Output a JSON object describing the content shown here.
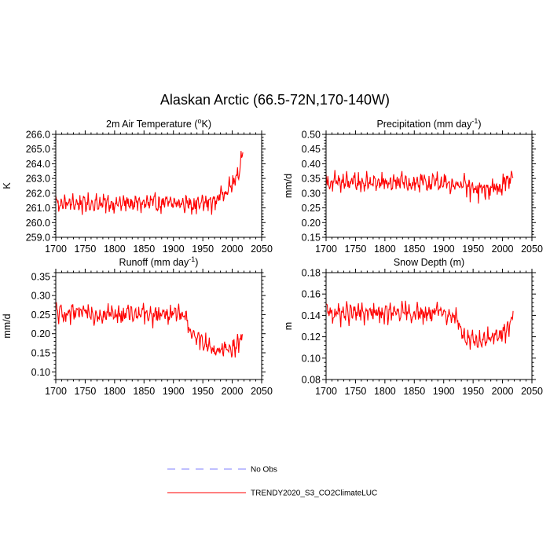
{
  "figure": {
    "title": "Alaskan Arctic (66.5-72N,170-140W)"
  },
  "legend": {
    "items": [
      {
        "label": "No Obs",
        "color": "#7f7fff",
        "style": "dashed"
      },
      {
        "label": "TRENDY2020_S3_CO2ClimateLUC",
        "color": "#ff0000",
        "style": "solid"
      }
    ]
  },
  "chart_data": [
    {
      "id": "temp",
      "type": "line",
      "title": "2m Air Temperature (",
      "title_sup": "o",
      "title_end": "K)",
      "ylabel": "K",
      "xlim": [
        1700,
        2050
      ],
      "ylim": [
        259.0,
        266.0
      ],
      "xticks": [
        1700,
        1750,
        1800,
        1850,
        1900,
        1950,
        2000,
        2050
      ],
      "yticks": [
        "259.0",
        "260.0",
        "261.0",
        "262.0",
        "263.0",
        "264.0",
        "265.0",
        "266.0"
      ],
      "color": "#ff0000",
      "series_name": "TRENDY2020_S3_CO2ClimateLUC",
      "base": 261.3,
      "amp": 0.9,
      "x": [
        1700,
        1750,
        1800,
        1850,
        1900,
        1950,
        1970,
        1980,
        1990,
        2000,
        2010,
        2015,
        2018
      ],
      "y": [
        261.3,
        261.3,
        261.3,
        261.3,
        261.3,
        261.3,
        261.4,
        261.9,
        262.2,
        262.6,
        263.2,
        264.4,
        264.8
      ],
      "amps": [
        0.9,
        0.9,
        0.9,
        0.9,
        0.9,
        1.0,
        0.9,
        0.7,
        0.8,
        0.8,
        0.8,
        0.8,
        0.6
      ]
    },
    {
      "id": "precip",
      "type": "line",
      "title": "Precipitation (mm day",
      "title_sup": "-1",
      "title_end": ")",
      "ylabel": "mm/d",
      "xlim": [
        1700,
        2050
      ],
      "ylim": [
        0.15,
        0.5
      ],
      "xticks": [
        1700,
        1750,
        1800,
        1850,
        1900,
        1950,
        2000,
        2050
      ],
      "yticks": [
        "0.15",
        "0.20",
        "0.25",
        "0.30",
        "0.35",
        "0.40",
        "0.45",
        "0.50"
      ],
      "color": "#ff0000",
      "series_name": "TRENDY2020_S3_CO2ClimateLUC",
      "x": [
        1700,
        1750,
        1800,
        1850,
        1900,
        1930,
        1950,
        1970,
        1990,
        2010,
        2018
      ],
      "y": [
        0.335,
        0.335,
        0.335,
        0.335,
        0.335,
        0.33,
        0.31,
        0.31,
        0.32,
        0.34,
        0.37
      ],
      "amps": [
        0.05,
        0.05,
        0.05,
        0.05,
        0.05,
        0.05,
        0.06,
        0.07,
        0.06,
        0.05,
        0.03
      ]
    },
    {
      "id": "runoff",
      "type": "line",
      "title": "Runoff (mm day",
      "title_sup": "-1",
      "title_end": ")",
      "ylabel": "mm/d",
      "xlim": [
        1700,
        2050
      ],
      "ylim": [
        0.08,
        0.36
      ],
      "xticks": [
        1700,
        1750,
        1800,
        1850,
        1900,
        1950,
        2000,
        2050
      ],
      "yticks": [
        "0.10",
        "0.15",
        "0.20",
        "0.25",
        "0.30",
        "0.35"
      ],
      "ytick_values": [
        0.1,
        0.15,
        0.2,
        0.25,
        0.3,
        0.35
      ],
      "color": "#ff0000",
      "series_name": "TRENDY2020_S3_CO2ClimateLUC",
      "x": [
        1700,
        1750,
        1800,
        1850,
        1900,
        1920,
        1930,
        1950,
        1970,
        1990,
        2010,
        2018
      ],
      "y": [
        0.252,
        0.252,
        0.252,
        0.252,
        0.252,
        0.25,
        0.2,
        0.18,
        0.155,
        0.16,
        0.17,
        0.2
      ],
      "amps": [
        0.04,
        0.04,
        0.04,
        0.04,
        0.04,
        0.04,
        0.03,
        0.04,
        0.04,
        0.04,
        0.04,
        0.03
      ]
    },
    {
      "id": "snow",
      "type": "line",
      "title": "Snow Depth (m)",
      "title_sup": "",
      "title_end": "",
      "ylabel": "m",
      "xlim": [
        1700,
        2050
      ],
      "ylim": [
        0.08,
        0.18
      ],
      "xticks": [
        1700,
        1750,
        1800,
        1850,
        1900,
        1950,
        2000,
        2050
      ],
      "yticks": [
        "0.08",
        "0.10",
        "0.12",
        "0.14",
        "0.16",
        "0.18"
      ],
      "color": "#ff0000",
      "series_name": "TRENDY2020_S3_CO2ClimateLUC",
      "x": [
        1700,
        1750,
        1800,
        1850,
        1900,
        1920,
        1935,
        1950,
        1970,
        1990,
        2005,
        2018
      ],
      "y": [
        0.142,
        0.142,
        0.142,
        0.142,
        0.142,
        0.14,
        0.12,
        0.115,
        0.118,
        0.12,
        0.125,
        0.14
      ],
      "amps": [
        0.014,
        0.014,
        0.014,
        0.014,
        0.014,
        0.014,
        0.012,
        0.013,
        0.013,
        0.013,
        0.014,
        0.016
      ]
    }
  ]
}
